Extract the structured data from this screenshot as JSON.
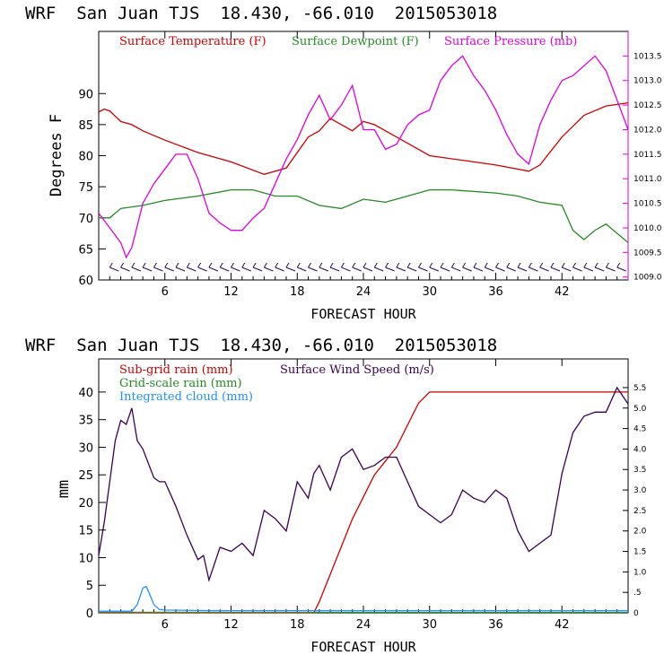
{
  "charts": [
    {
      "header": "WRF  San Juan TJS  18.430, -66.010  2015053018",
      "xlabel": "FORECAST HOUR",
      "ylabel": "Degrees F",
      "xticks": [
        6,
        12,
        18,
        24,
        30,
        36,
        42
      ],
      "yticks": [
        60,
        65,
        70,
        75,
        80,
        85,
        90
      ],
      "rticks": [
        "1009.0",
        "1009.5",
        "1010.0",
        "1010.5",
        "1011.0",
        "1011.5",
        "1012.0",
        "1012.5",
        "1013.0",
        "1013.5"
      ],
      "legend": [
        {
          "label": "Surface Temperature (F)",
          "color": "#cc0000"
        },
        {
          "label": "Surface Dewpoint (F)",
          "color": "#228b22"
        },
        {
          "label": "Surface Pressure (mb)",
          "color": "#dd00dd"
        }
      ]
    },
    {
      "header": "WRF  San Juan TJS  18.430, -66.010  2015053018",
      "xlabel": "FORECAST HOUR",
      "ylabel": "mm",
      "xticks": [
        6,
        12,
        18,
        24,
        30,
        36,
        42
      ],
      "yticks": [
        0,
        5,
        10,
        15,
        20,
        25,
        30,
        35,
        40
      ],
      "rticks": [
        "0",
        ".5",
        "1.0",
        "1.5",
        "2.0",
        "2.5",
        "3.0",
        "3.5",
        "4.0",
        "4.5",
        "5.0",
        "5.5"
      ],
      "legend": [
        {
          "label": "Sub-grid rain (mm)",
          "color": "#cc0000"
        },
        {
          "label": "Surface Wind Speed (m/s)",
          "color": "#3a0050"
        },
        {
          "label": "Grid-scale rain (mm)",
          "color": "#228b22"
        },
        {
          "label": "Integrated cloud (mm)",
          "color": "#1e90ff"
        }
      ]
    }
  ],
  "chart_data": [
    {
      "type": "line",
      "x_range": [
        0,
        48
      ],
      "ylim": [
        60,
        100
      ],
      "y2lim": [
        1008.94,
        1014.0
      ],
      "series": [
        {
          "name": "Surface Temperature (F)",
          "axis": "left",
          "color": "#cc0000",
          "x": [
            0,
            0.5,
            1,
            2,
            3,
            4,
            6,
            9,
            12,
            15,
            17,
            19,
            20,
            21,
            22,
            23,
            24,
            25,
            26,
            27,
            28,
            30,
            34,
            36,
            39,
            40,
            42,
            44,
            46,
            48
          ],
          "y": [
            87,
            87.5,
            87.2,
            85.5,
            85,
            84,
            82.5,
            80.5,
            79,
            77,
            78,
            83,
            84,
            86,
            85,
            84,
            85.5,
            85,
            84,
            83,
            82,
            80,
            79,
            78.5,
            77.5,
            78.5,
            83,
            86.5,
            88,
            88.5
          ]
        },
        {
          "name": "Surface Dewpoint (F)",
          "axis": "left",
          "color": "#228b22",
          "x": [
            0,
            1,
            2,
            4,
            6,
            9,
            12,
            14,
            16,
            18,
            20,
            22,
            24,
            26,
            28,
            30,
            32,
            36,
            38,
            40,
            42,
            43,
            44,
            45,
            46,
            48
          ],
          "y": [
            70,
            70,
            71.5,
            72,
            72.8,
            73.5,
            74.5,
            74.5,
            73.5,
            73.5,
            72,
            71.5,
            73,
            72.5,
            73.5,
            74.5,
            74.5,
            74,
            73.5,
            72.5,
            72,
            68,
            66.5,
            68,
            69,
            66
          ]
        },
        {
          "name": "Surface Pressure (mb)",
          "axis": "right",
          "color": "#dd00dd",
          "x": [
            0,
            1,
            2,
            2.5,
            3,
            4,
            5,
            6,
            7,
            8,
            9,
            10,
            11,
            12,
            13,
            14,
            15,
            16,
            17,
            18,
            19,
            20,
            21,
            22,
            23,
            24,
            25,
            26,
            27,
            28,
            29,
            30,
            31,
            32,
            33,
            34,
            35,
            36,
            37,
            38,
            39,
            40,
            41,
            42,
            43,
            44,
            45,
            46,
            47,
            48
          ],
          "y": [
            1010.3,
            1010.0,
            1009.7,
            1009.4,
            1009.6,
            1010.5,
            1010.9,
            1011.2,
            1011.5,
            1011.5,
            1011.0,
            1010.3,
            1010.1,
            1009.95,
            1009.95,
            1010.2,
            1010.4,
            1010.9,
            1011.4,
            1011.8,
            1012.3,
            1012.7,
            1012.2,
            1012.5,
            1012.9,
            1012.0,
            1012.0,
            1011.6,
            1011.7,
            1012.1,
            1012.3,
            1012.4,
            1013.0,
            1013.3,
            1013.5,
            1013.1,
            1012.8,
            1012.4,
            1011.9,
            1011.5,
            1011.3,
            1012.1,
            1012.6,
            1013.0,
            1013.1,
            1013.3,
            1013.5,
            1013.2,
            1012.6,
            1012.0
          ]
        }
      ],
      "wind_barbs": true
    },
    {
      "type": "line",
      "x_range": [
        0,
        48
      ],
      "ylim": [
        0,
        46
      ],
      "y2lim": [
        0,
        6.2
      ],
      "series": [
        {
          "name": "Sub-grid rain (mm)",
          "axis": "left",
          "color": "#cc0000",
          "x": [
            0,
            19.5,
            20,
            21,
            22,
            23,
            24,
            25,
            26,
            27,
            28,
            28.5,
            29,
            30,
            48
          ],
          "y": [
            0,
            0,
            2,
            7,
            12,
            17,
            21,
            25,
            27.5,
            30,
            34,
            36,
            38,
            40,
            40
          ]
        },
        {
          "name": "Surface Wind Speed (m/s)",
          "axis": "right",
          "color": "#3a0050",
          "x": [
            0,
            0.5,
            1,
            1.5,
            2,
            2.5,
            3,
            3.5,
            4,
            5,
            5.5,
            6,
            7,
            8,
            9,
            9.5,
            10,
            11,
            12,
            13,
            14,
            15,
            16,
            17,
            18,
            19,
            19.5,
            20,
            21,
            22,
            23,
            24,
            25,
            26,
            27,
            28,
            29,
            30,
            31,
            32,
            33,
            34,
            35,
            36,
            37,
            38,
            39,
            40,
            41,
            42,
            43,
            44,
            45,
            46,
            47,
            48
          ],
          "y": [
            1.4,
            2.2,
            3.2,
            4.2,
            4.7,
            4.6,
            5.0,
            4.2,
            4.0,
            3.3,
            3.2,
            3.2,
            2.6,
            1.9,
            1.3,
            1.4,
            0.8,
            1.6,
            1.5,
            1.7,
            1.4,
            2.5,
            2.3,
            2.0,
            3.2,
            2.8,
            3.4,
            3.6,
            3.0,
            3.8,
            4.0,
            3.5,
            3.6,
            3.8,
            3.8,
            3.2,
            2.6,
            2.4,
            2.2,
            2.4,
            3.0,
            2.8,
            2.7,
            3.0,
            2.8,
            2.0,
            1.5,
            1.7,
            1.9,
            3.4,
            4.4,
            4.8,
            4.9,
            4.9,
            5.5,
            5.1
          ]
        },
        {
          "name": "Grid-scale rain (mm)",
          "axis": "left",
          "color": "#228b22",
          "x": [
            0,
            48
          ],
          "y": [
            0.1,
            0.1
          ]
        },
        {
          "name": "Integrated cloud (mm)",
          "axis": "left",
          "color": "#1e90ff",
          "x": [
            0,
            3,
            3.5,
            4,
            4.3,
            4.6,
            5,
            5.5,
            6,
            10,
            48
          ],
          "y": [
            0.3,
            0.3,
            1.5,
            4.5,
            4.8,
            3.5,
            1.5,
            0.6,
            0.5,
            0.4,
            0.4
          ]
        }
      ]
    }
  ]
}
